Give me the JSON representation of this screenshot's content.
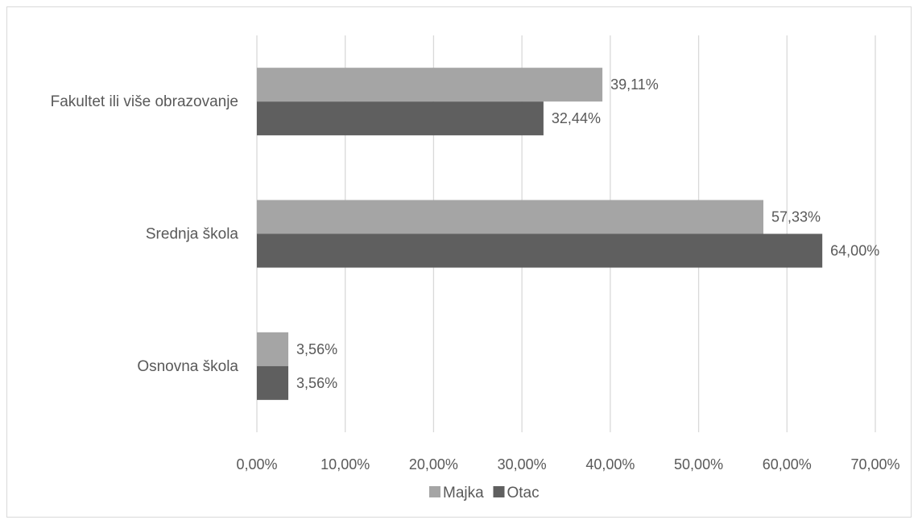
{
  "chart_data": {
    "type": "bar",
    "orientation": "horizontal",
    "categories": [
      "Fakultet ili više obrazovanje",
      "Srednja škola",
      "Osnovna škola"
    ],
    "series": [
      {
        "name": "Majka",
        "values": [
          39.11,
          57.33,
          3.56
        ],
        "labels": [
          "39,11%",
          "57,33%",
          "3,56%"
        ],
        "color": "#a5a5a5"
      },
      {
        "name": "Otac",
        "values": [
          32.44,
          64.0,
          3.56
        ],
        "labels": [
          "32,44%",
          "64,00%",
          "3,56%"
        ],
        "color": "#5f5f5f"
      }
    ],
    "xlim": [
      0,
      70
    ],
    "xticks": [
      0,
      10,
      20,
      30,
      40,
      50,
      60,
      70
    ],
    "xtick_labels": [
      "0,00%",
      "10,00%",
      "20,00%",
      "30,00%",
      "40,00%",
      "50,00%",
      "60,00%",
      "70,00%"
    ],
    "grid": "vertical",
    "legend": "bottom",
    "title": "",
    "xlabel": "",
    "ylabel": ""
  }
}
